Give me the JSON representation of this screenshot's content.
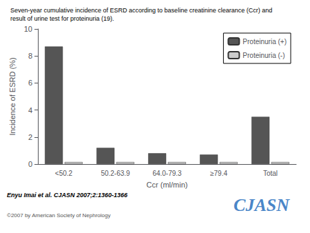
{
  "chart_data": {
    "type": "bar",
    "title": "Seven-year cumulative incidence of ESRD according to baseline creatinine clearance (Ccr) and\nresult of urine test for proteinuria (19).",
    "categories": [
      "<50.2",
      "50.2-63.9",
      "64.0-79.3",
      "≥79.4",
      "Total"
    ],
    "series": [
      {
        "name": "Proteinuria (+)",
        "color": "#555555",
        "values": [
          8.7,
          1.2,
          0.8,
          0.7,
          3.5
        ]
      },
      {
        "name": "Proteinuria (-)",
        "color": "#cccccc",
        "values": [
          0.15,
          0.15,
          0.15,
          0.15,
          0.15
        ]
      }
    ],
    "xlabel": "Ccr (ml/min)",
    "ylabel": "Incidence of ESRD (%)",
    "ylim": [
      0,
      10
    ],
    "yticks": [
      0,
      2,
      4,
      6,
      8,
      10
    ],
    "grid": false,
    "legend": "upper right",
    "annotations": [
      {
        "text": "Enyu Imai et al. CJASN 2007;2:1360-1366"
      },
      {
        "text": "©2007 by American Society of Nephrology"
      },
      {
        "text": "CJASN",
        "color": "#4A86C8"
      }
    ]
  }
}
